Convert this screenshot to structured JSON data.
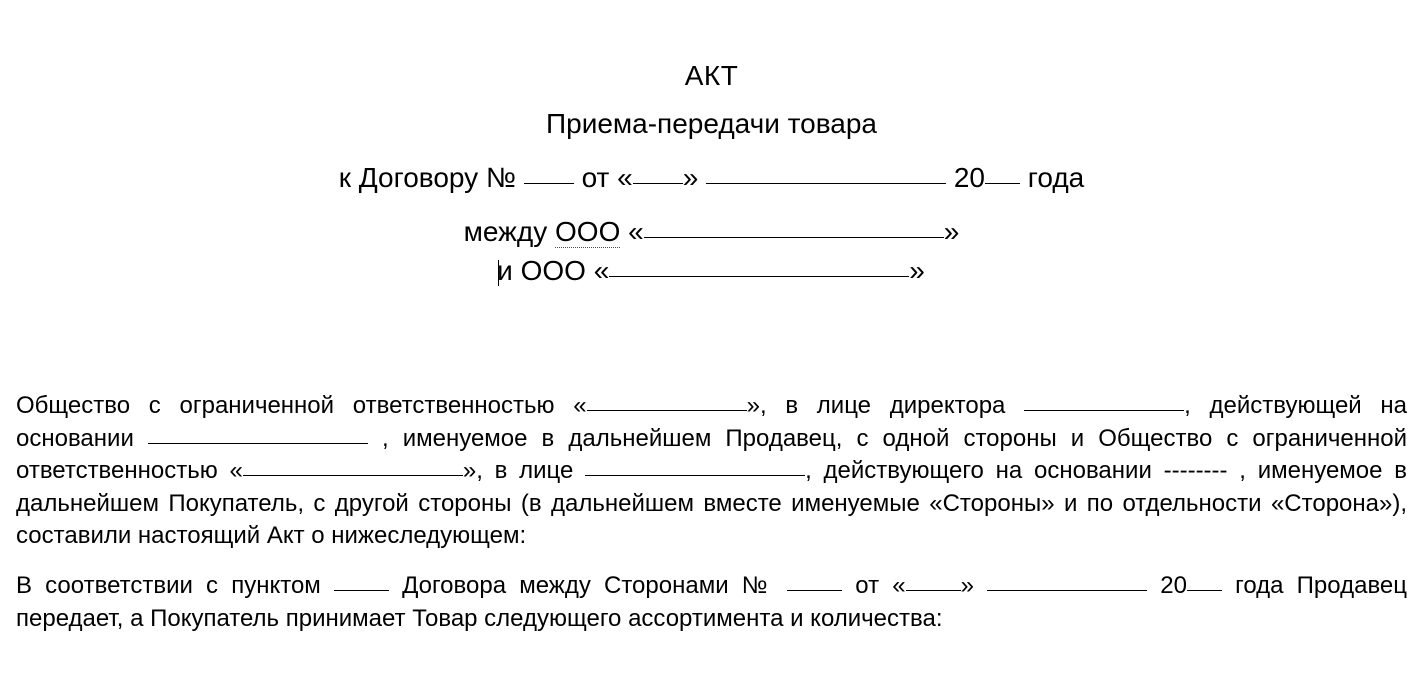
{
  "header": {
    "title_1": "АКТ",
    "title_2": "Приема-передачи товара",
    "contract_prefix": "к Договору №",
    "from_word": "от",
    "open_quote": "«",
    "close_quote": "»",
    "year_prefix": "20",
    "year_word": "года",
    "between_word": "между",
    "ooo_word": "ООО",
    "and_word": "и"
  },
  "body": {
    "para1_part1": "Общество с ограниченной ответственностью «",
    "para1_part2": "», в лице директора ",
    "para1_part3": ", действующей на основании ",
    "para1_part4": " , именуемое в дальнейшем Продавец, с одной стороны и Общество с ограниченной ответственностью «",
    "para1_part5": "», в лице ",
    "para1_part6": ", действующего на основании -------- , именуемое в дальнейшем Покупатель, с другой стороны (в дальнейшем вместе именуемые «Стороны» и по отдельности «Сторона»), составили настоящий Акт о нижеследующем:",
    "para2_part1": "В соответствии с пунктом ",
    "para2_part2": " Договора между Сторонами № ",
    "para2_part3": " от «",
    "para2_part4": "» ",
    "para2_part5": " 20",
    "para2_part6": " года Продавец передает, а Покупатель принимает Товар следующего ассортимента и количества:"
  },
  "style": {
    "background_color": "#ffffff",
    "text_color": "#000000",
    "underline_color": "#000000",
    "dotted_underline_color": "#008000",
    "header_fontsize": 28,
    "body_fontsize": 24,
    "font_family": "Arial"
  }
}
